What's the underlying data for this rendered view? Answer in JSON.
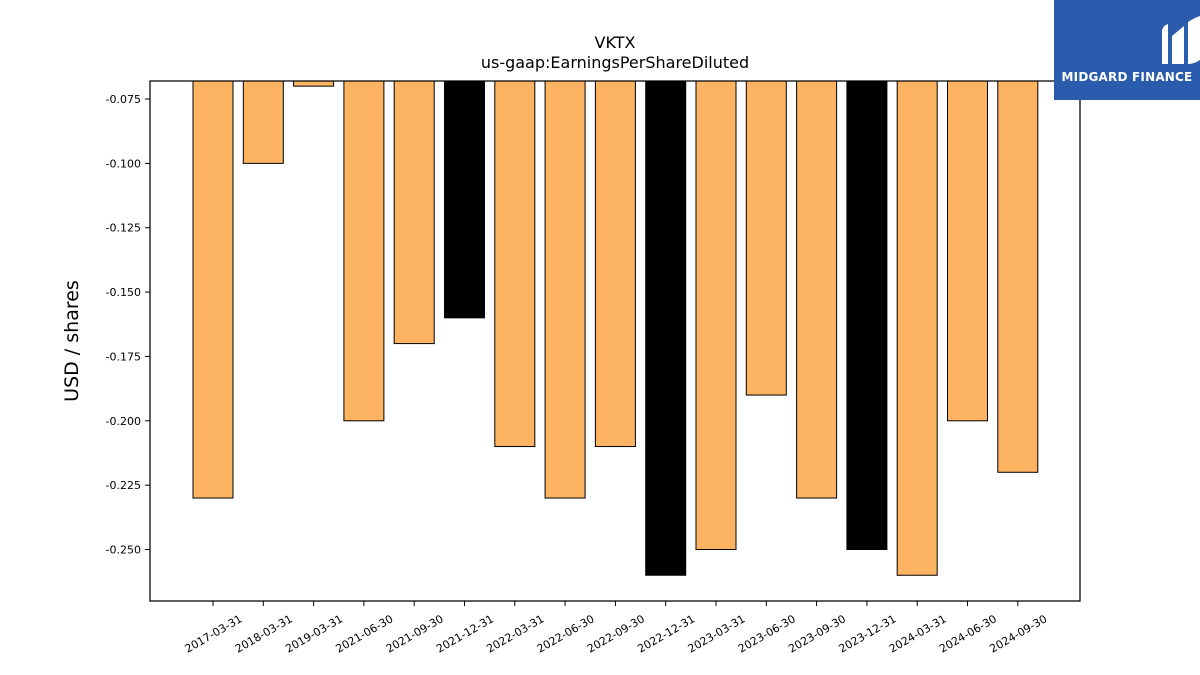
{
  "brand": {
    "name": "MIDGARD FINANCE",
    "bg_color": "#2a5cad"
  },
  "chart_data": {
    "type": "bar",
    "title": "VKTX",
    "subtitle": "us-gaap:EarningsPerShareDiluted",
    "xlabel": "",
    "ylabel": "USD / shares",
    "ylim": [
      -0.27,
      -0.068
    ],
    "yticks": [
      "-0.075",
      "-0.100",
      "-0.125",
      "-0.150",
      "-0.175",
      "-0.200",
      "-0.225",
      "-0.250"
    ],
    "ytick_values": [
      -0.075,
      -0.1,
      -0.125,
      -0.15,
      -0.175,
      -0.2,
      -0.225,
      -0.25
    ],
    "grid": false,
    "colors": {
      "default": "#fdb462",
      "highlight": "#000000",
      "edge": "#000000"
    },
    "categories": [
      "2017-03-31",
      "2018-03-31",
      "2019-03-31",
      "2021-06-30",
      "2021-09-30",
      "2021-12-31",
      "2022-03-31",
      "2022-06-30",
      "2022-09-30",
      "2022-12-31",
      "2023-03-31",
      "2023-06-30",
      "2023-09-30",
      "2023-12-31",
      "2024-03-31",
      "2024-06-30",
      "2024-09-30"
    ],
    "values": [
      -0.23,
      -0.1,
      -0.07,
      -0.2,
      -0.17,
      -0.16,
      -0.21,
      -0.23,
      -0.21,
      -0.26,
      -0.25,
      -0.19,
      -0.23,
      -0.25,
      -0.26,
      -0.2,
      -0.22
    ],
    "highlight": [
      false,
      false,
      false,
      false,
      false,
      true,
      false,
      false,
      false,
      true,
      false,
      false,
      false,
      true,
      false,
      false,
      false
    ]
  }
}
